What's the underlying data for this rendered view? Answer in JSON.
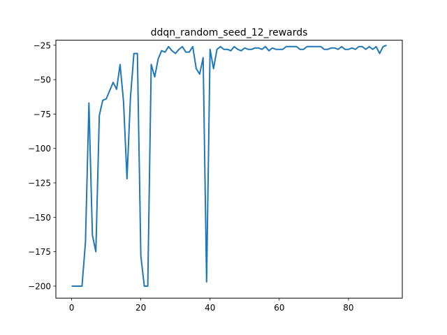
{
  "chart_data": {
    "type": "line",
    "title": "ddqn_random_seed_12_rewards",
    "xlabel": "",
    "ylabel": "",
    "xlim": [
      -4.55,
      95.55
    ],
    "ylim": [
      -208.75,
      -21.35
    ],
    "x_ticks": [
      0,
      20,
      40,
      60,
      80
    ],
    "y_ticks": [
      -200,
      -175,
      -150,
      -125,
      -100,
      -75,
      -50,
      -25
    ],
    "x_tick_labels": [
      "0",
      "20",
      "40",
      "60",
      "80"
    ],
    "y_tick_labels": [
      "−200",
      "−175",
      "−150",
      "−125",
      "−100",
      "−75",
      "−50",
      "−25"
    ],
    "grid": false,
    "series": [
      {
        "color": "#1f77b4",
        "x": [
          0,
          1,
          2,
          3,
          4,
          5,
          6,
          7,
          8,
          9,
          10,
          11,
          12,
          13,
          14,
          15,
          16,
          17,
          18,
          19,
          20,
          21,
          22,
          23,
          24,
          25,
          26,
          27,
          28,
          29,
          30,
          31,
          32,
          33,
          34,
          35,
          36,
          37,
          38,
          39,
          40,
          41,
          42,
          43,
          44,
          45,
          46,
          47,
          48,
          49,
          50,
          51,
          52,
          53,
          54,
          55,
          56,
          57,
          58,
          59,
          60,
          61,
          62,
          63,
          64,
          65,
          66,
          67,
          68,
          69,
          70,
          71,
          72,
          73,
          74,
          75,
          76,
          77,
          78,
          79,
          80,
          81,
          82,
          83,
          84,
          85,
          86,
          87,
          88,
          89,
          90,
          91
        ],
        "y": [
          -200,
          -200,
          -200,
          -200,
          -168,
          -67,
          -163,
          -175,
          -76,
          -65,
          -64,
          -58,
          -52,
          -57,
          -39,
          -66,
          -122,
          -63,
          -31,
          -31,
          -178,
          -200,
          -200,
          -39,
          -48,
          -35,
          -29,
          -30,
          -26,
          -29,
          -31,
          -28,
          -26,
          -30,
          -30,
          -26,
          -42,
          -46,
          -34,
          -197,
          -28,
          -42,
          -28,
          -26,
          -28,
          -28,
          -29,
          -26,
          -28,
          -29,
          -27,
          -28,
          -28,
          -27,
          -27,
          -28,
          -26,
          -29,
          -27,
          -28,
          -28,
          -28,
          -26,
          -26,
          -26,
          -26,
          -28,
          -28,
          -26,
          -26,
          -26,
          -26,
          -26,
          -28,
          -28,
          -27,
          -27,
          -28,
          -26,
          -28,
          -28,
          -27,
          -28,
          -26,
          -26,
          -28,
          -26,
          -28,
          -26,
          -31,
          -26,
          -25
        ]
      }
    ]
  }
}
